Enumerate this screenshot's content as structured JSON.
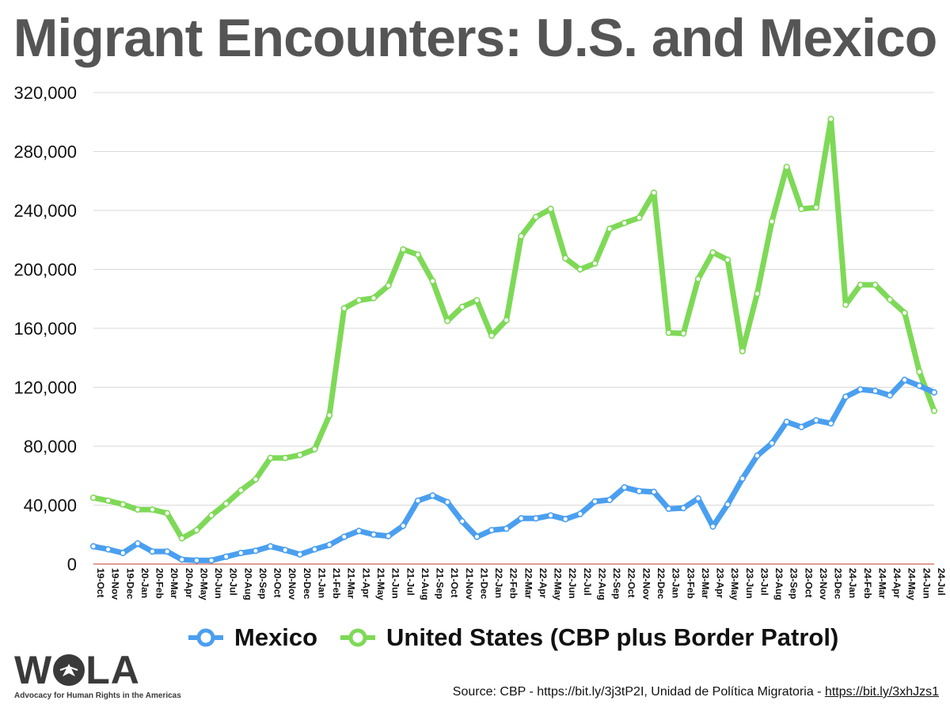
{
  "title": "Migrant Encounters: U.S. and Mexico",
  "chart_data": {
    "type": "line",
    "title": "Migrant Encounters: U.S. and Mexico",
    "xlabel": "",
    "ylabel": "",
    "ylim": [
      0,
      320000
    ],
    "y_ticks": [
      0,
      40000,
      80000,
      120000,
      160000,
      200000,
      240000,
      280000,
      320000
    ],
    "y_tick_labels": [
      "0",
      "40,000",
      "80,000",
      "120,000",
      "160,000",
      "200,000",
      "240,000",
      "280,000",
      "320,000"
    ],
    "grid": true,
    "legend": "bottom",
    "categories": [
      "19-Oct",
      "19-Nov",
      "19-Dec",
      "20-Jan",
      "20-Feb",
      "20-Mar",
      "20-Apr",
      "20-May",
      "20-Jun",
      "20-Jul",
      "20-Aug",
      "20-Sep",
      "20-Oct",
      "20-Nov",
      "20-Dec",
      "21-Jan",
      "21-Feb",
      "21-Mar",
      "21-Apr",
      "21-May",
      "21-Jun",
      "21-Jul",
      "21-Aug",
      "21-Sep",
      "21-Oct",
      "21-Nov",
      "21-Dec",
      "22-Jan",
      "22-Feb",
      "22-Mar",
      "22-Apr",
      "22-May",
      "22-Jun",
      "22-Jul",
      "22-Aug",
      "22-Sep",
      "22-Oct",
      "22-Nov",
      "22-Dec",
      "23-Jan",
      "23-Feb",
      "23-Mar",
      "23-Apr",
      "23-May",
      "23-Jun",
      "23-Jul",
      "23-Aug",
      "23-Sep",
      "23-Oct",
      "23-Nov",
      "23-Dec",
      "24-Jan",
      "24-Feb",
      "24-Mar",
      "24-Apr",
      "24-May",
      "24-Jun",
      "24-Jul"
    ],
    "series": [
      {
        "name": "Mexico",
        "color": "#4a9ff0",
        "values": [
          12000,
          10000,
          7500,
          14000,
          8500,
          8500,
          3000,
          2500,
          2500,
          5000,
          7500,
          9000,
          12000,
          9500,
          6500,
          10000,
          13000,
          18500,
          22500,
          20000,
          19000,
          26000,
          43000,
          46500,
          42000,
          29000,
          18500,
          23000,
          24000,
          31000,
          31000,
          33000,
          30500,
          34000,
          42500,
          43500,
          52000,
          49500,
          49000,
          37500,
          38000,
          44500,
          25500,
          40500,
          58000,
          73500,
          82000,
          96500,
          93000,
          97500,
          95500,
          113500,
          118500,
          117500,
          114500,
          125000,
          121000,
          116500
        ]
      },
      {
        "name": "United States (CBP plus Border Patrol)",
        "color": "#7ed957",
        "values": [
          45000,
          43000,
          40500,
          37000,
          37000,
          34500,
          17500,
          23000,
          33000,
          41000,
          50000,
          57500,
          72000,
          72000,
          74000,
          78000,
          101000,
          173500,
          179000,
          180500,
          189000,
          213500,
          210000,
          192000,
          165000,
          174500,
          179000,
          155000,
          165500,
          222500,
          235500,
          241000,
          207500,
          200000,
          204000,
          227500,
          231500,
          235000,
          252000,
          157000,
          156500,
          193500,
          211500,
          206500,
          144500,
          183500,
          232500,
          269500,
          241000,
          242000,
          302000,
          176000,
          189500,
          189500,
          179500,
          170500,
          130500,
          104000
        ]
      }
    ]
  },
  "legend": {
    "mexico_label": "Mexico",
    "us_label": "United States (CBP plus Border Patrol)"
  },
  "logo": {
    "name": "WOLA",
    "letters_before": "W",
    "letters_after": "LA",
    "tagline": "Advocacy for Human Rights in the Americas"
  },
  "source": {
    "prefix": "Source: CBP - https://bit.ly/3j3tP2I, Unidad de Política Migratoria - ",
    "link": "https://bit.ly/3xhJzs1"
  },
  "colors": {
    "mexico": "#4a9ff0",
    "us": "#7ed957",
    "title": "#555555",
    "grid": "#d9d9d9",
    "zero_line": "#c0392b"
  }
}
